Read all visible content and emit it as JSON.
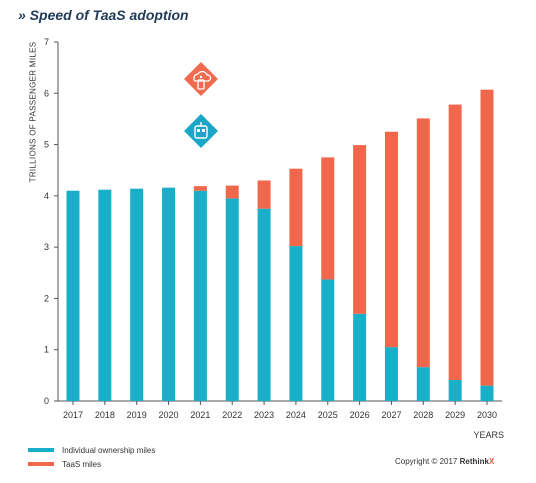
{
  "title": "» Speed of TaaS adoption",
  "copyright": {
    "text": "Copyright © 2017 ",
    "brand": "Rethink",
    "brand_x": "X",
    "brand_x_color": "#f05a3c"
  },
  "icons": [
    {
      "name": "cloud-car-app-icon",
      "color": "#ef6a4f"
    },
    {
      "name": "parked-car-icon",
      "color": "#1aa6c6"
    }
  ],
  "chart_data": {
    "type": "bar",
    "stacked": true,
    "title": "» Speed of TaaS adoption",
    "xlabel": "YEARS",
    "ylabel": "TRILLIONS OF PASSENGER MILES",
    "ylim": [
      0,
      7
    ],
    "yticks": [
      0,
      1,
      2,
      3,
      4,
      5,
      6,
      7
    ],
    "grid": false,
    "legend_placement": "bottom-left",
    "categories": [
      "2017",
      "2018",
      "2019",
      "2020",
      "2021",
      "2022",
      "2023",
      "2024",
      "2025",
      "2026",
      "2027",
      "2028",
      "2029",
      "2030"
    ],
    "series": [
      {
        "name": "Individual ownership miles",
        "color": "#1aafc8",
        "values": [
          4.1,
          4.12,
          4.14,
          4.16,
          4.1,
          3.95,
          3.75,
          3.02,
          2.37,
          1.7,
          1.05,
          0.66,
          0.41,
          0.3
        ]
      },
      {
        "name": "TaaS miles",
        "color": "#f0674c",
        "values": [
          0,
          0,
          0,
          0,
          0.09,
          0.25,
          0.55,
          1.51,
          2.38,
          3.29,
          4.2,
          4.85,
          5.37,
          5.77
        ]
      }
    ]
  }
}
